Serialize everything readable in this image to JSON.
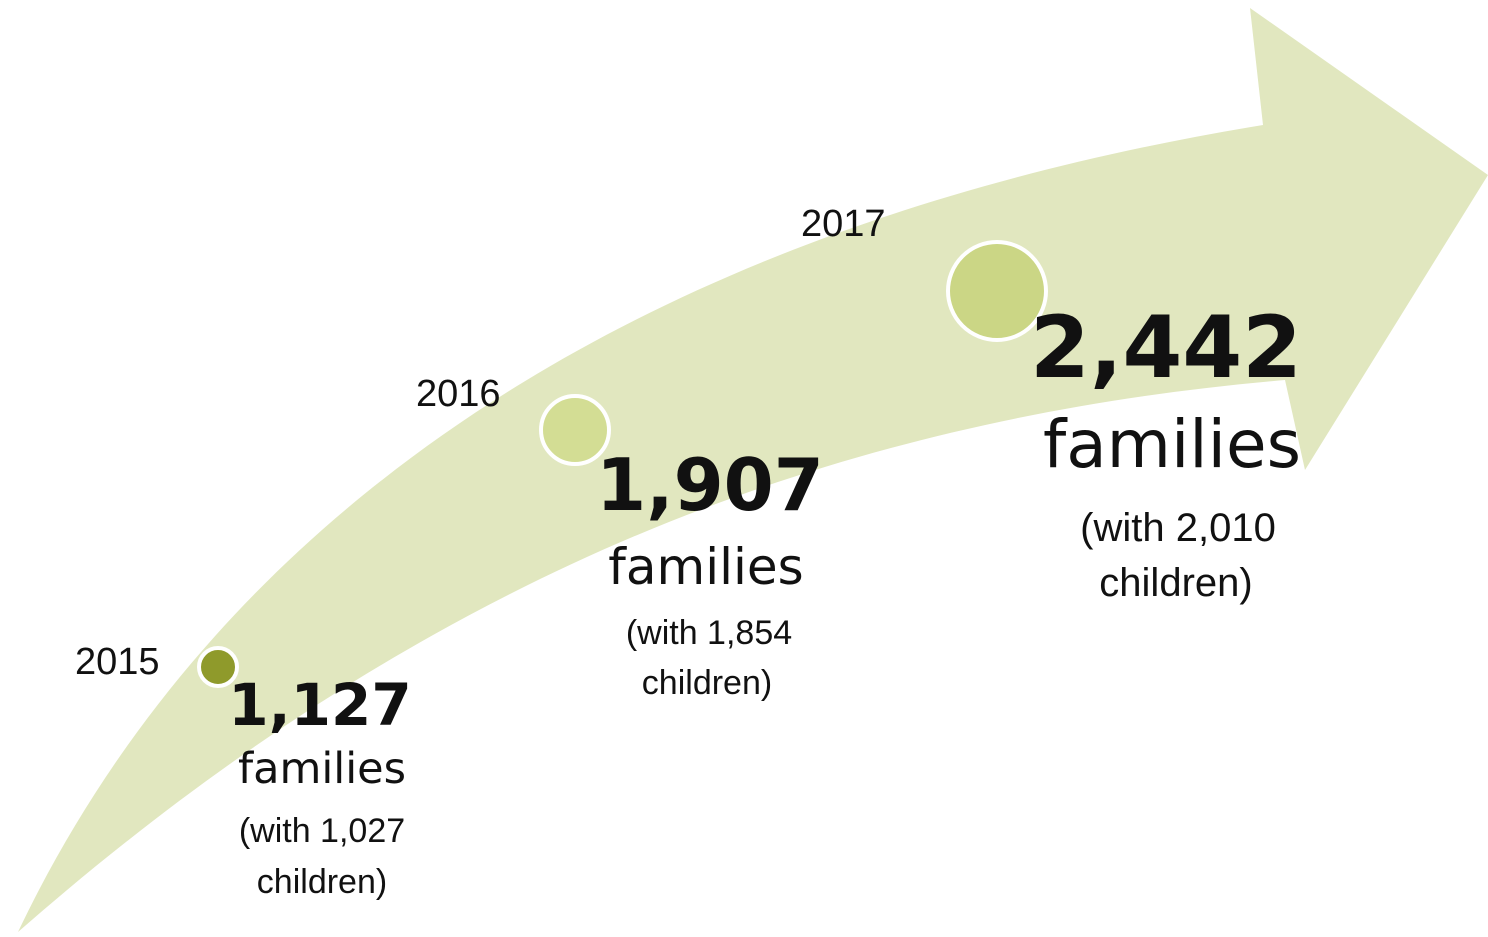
{
  "colors": {
    "arrow": "#e1e7bf",
    "dot_2015": "#8f9a2b",
    "dot_2016": "#d3dd94",
    "dot_2017": "#cbd685",
    "dot_ring": "#ffffff",
    "text": "#111111"
  },
  "milestones": [
    {
      "year": "2015",
      "families": "1,127",
      "unit": "families",
      "children_line1": "(with 1,027",
      "children_line2": "children)"
    },
    {
      "year": "2016",
      "families": "1,907",
      "unit": "families",
      "children_line1": "(with 1,854",
      "children_line2": "children)"
    },
    {
      "year": "2017",
      "families": "2,442",
      "unit": "families",
      "children_line1": "(with 2,010",
      "children_line2": "children)"
    }
  ]
}
